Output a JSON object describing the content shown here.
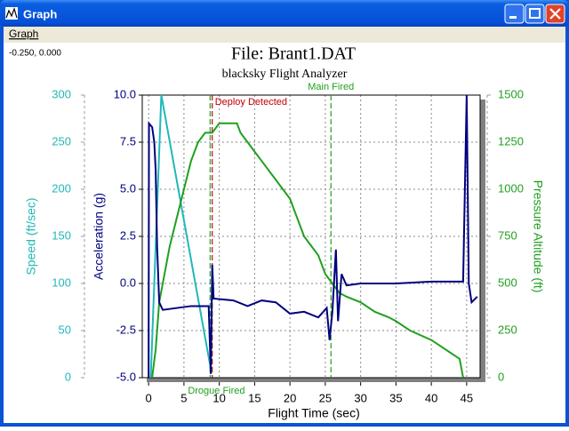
{
  "window": {
    "title": "Graph",
    "menu": [
      "Graph"
    ],
    "cursor_readout": "-0.250, 0.000"
  },
  "chart_data": {
    "type": "line",
    "title": "File: Brant1.DAT",
    "subtitle": "blacksky Flight Analyzer",
    "xlabel": "Flight Time (sec)",
    "xlim": [
      -0.9,
      46.9
    ],
    "xticks": [
      0,
      5,
      10,
      15,
      20,
      25,
      30,
      35,
      40,
      45
    ],
    "ylabel": "Acceleration (g)",
    "ylim": [
      -5,
      10
    ],
    "yticks": [
      {
        "value": -5,
        "label": "-5.0"
      },
      -2.5,
      {
        "value": 0,
        "label": "0.0"
      },
      2.5,
      {
        "value": 5,
        "label": "5.0"
      },
      7.5,
      {
        "value": 10,
        "label": "10.0"
      }
    ],
    "y2label": "Pressure Altitude (ft)",
    "y2lim": [
      0,
      1500
    ],
    "y2ticks": [
      0,
      250,
      500,
      750,
      1000,
      1250,
      1500
    ],
    "y3label": "Speed (ft/sec)",
    "y3lim": [
      0,
      300
    ],
    "y3ticks": [
      0,
      50,
      100,
      150,
      200,
      250,
      300
    ],
    "grid": true,
    "series": [
      {
        "color": "#20b8b8",
        "axis": "y3",
        "x": [
          0.3,
          1.8,
          8.9
        ],
        "values": [
          0,
          300,
          5
        ]
      },
      {
        "color": "#1fa01f",
        "axis": "y2",
        "x": [
          0.5,
          1,
          1.5,
          2,
          3,
          4,
          5,
          6,
          7,
          8,
          9,
          10,
          12.5,
          13,
          14,
          15,
          16,
          17,
          18,
          19,
          20,
          21,
          22,
          23,
          24,
          25,
          26,
          27,
          28,
          30,
          32,
          34,
          35,
          37,
          40,
          42,
          44,
          44.5
        ],
        "values": [
          0,
          150,
          400,
          500,
          700,
          850,
          1000,
          1150,
          1250,
          1300,
          1300,
          1350,
          1350,
          1300,
          1250,
          1200,
          1150,
          1100,
          1050,
          1000,
          950,
          850,
          750,
          700,
          650,
          550,
          500,
          450,
          430,
          400,
          350,
          320,
          300,
          250,
          200,
          150,
          100,
          0
        ]
      },
      {
        "color": "#00007f",
        "axis": "y",
        "x": [
          0,
          0.05,
          0.5,
          0.8,
          1.0,
          1.2,
          1.5,
          2,
          4,
          6,
          8.5,
          8.8,
          9.0,
          9.2,
          12,
          14,
          16,
          18,
          20,
          22,
          24,
          25.2,
          25.6,
          26,
          26.5,
          26.8,
          27.3,
          28,
          30,
          35,
          40,
          44.5,
          45,
          45.3,
          45.7,
          46.5
        ],
        "values": [
          -5,
          8.5,
          8.3,
          7.5,
          6.0,
          2,
          -1,
          -1.4,
          -1.3,
          -1.2,
          -1.2,
          -4.8,
          1.0,
          -0.8,
          -0.9,
          -1.2,
          -0.9,
          -1.0,
          -1.6,
          -1.5,
          -1.8,
          -1.3,
          -3.0,
          -1.5,
          1.8,
          -2,
          0.5,
          -0.1,
          0,
          0,
          0.1,
          0.1,
          10,
          0,
          -1.0,
          -0.7
        ]
      }
    ],
    "annotations": [
      {
        "x": 8.7,
        "text": "Drogue Fired",
        "color": "#1fa01f"
      },
      {
        "x": 9.0,
        "text": "Deploy Detected",
        "color": "#c00000"
      },
      {
        "x": 25.8,
        "text": "Main Fired",
        "color": "#1fa01f"
      }
    ]
  }
}
